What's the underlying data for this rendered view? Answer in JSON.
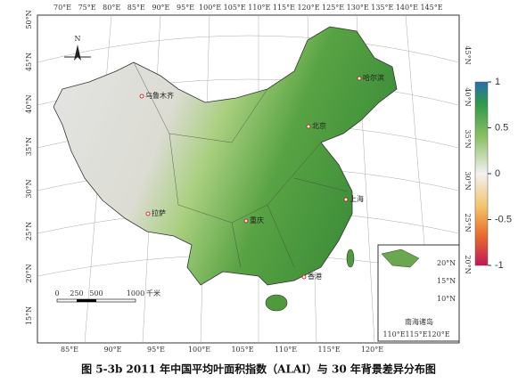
{
  "map": {
    "top_lon_labels": [
      "70°E",
      "75°E",
      "80°E",
      "85°E",
      "90°E",
      "95°E",
      "100°E",
      "105°E",
      "110°E",
      "115°E",
      "120°E",
      "125°E",
      "130°E",
      "135°E",
      "140°E",
      "145°E"
    ],
    "bottom_lon_labels": [
      "85°E",
      "90°E",
      "95°E",
      "100°E",
      "105°E",
      "110°E",
      "115°E",
      "120°E"
    ],
    "left_lat_labels": [
      "50°N",
      "45°N",
      "40°N",
      "35°N",
      "30°N",
      "25°N",
      "20°N",
      "15°N"
    ],
    "right_lat_labels": [
      "45°N",
      "40°N",
      "35°N",
      "30°N",
      "25°N",
      "20°N"
    ],
    "north_arrow": "N",
    "cities": [
      "乌鲁木齐",
      "哈尔滨",
      "北京",
      "上海",
      "拉萨",
      "重庆",
      "香港"
    ],
    "scale_bar": {
      "ticks": [
        0,
        250,
        500,
        1000
      ],
      "unit": "千米"
    },
    "inset": {
      "lat_labels": [
        "20°N",
        "15°N",
        "10°N"
      ],
      "lon_labels": [
        "110°E",
        "115°E",
        "120°E"
      ],
      "label": "南海诸岛"
    },
    "colorbar": {
      "lim": [
        -1,
        1
      ],
      "ticks": [
        1,
        0.5,
        0,
        -0.5,
        -1
      ]
    },
    "caption": "图 5-3b 2011 年中国平均叶面积指数（ALAI）与 30 年背景差异分布图"
  }
}
